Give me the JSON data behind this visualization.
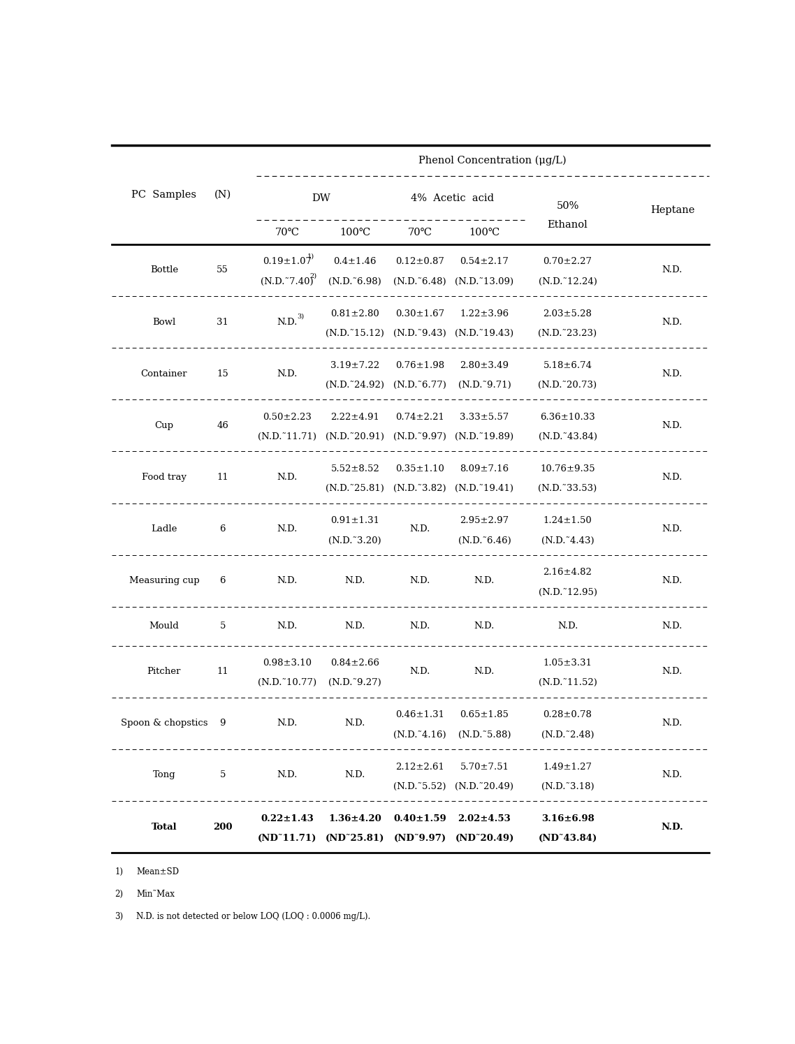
{
  "title": "Phenol Concentration (μg/L)",
  "rows": [
    {
      "sample": "Bottle",
      "n": "55",
      "dw_70": "0.19±1.07",
      "dw_70_sup": "1)",
      "dw_70b": "(N.D.˜7.40)",
      "dw_70b_sup": "2)",
      "dw_100": "0.4±1.46",
      "dw_100b": "(N.D.˜6.98)",
      "aa_70": "0.12±0.87",
      "aa_70b": "(N.D.˜6.48)",
      "aa_100": "0.54±2.17",
      "aa_100b": "(N.D.˜13.09)",
      "eth": "0.70±2.27",
      "ethb": "(N.D.˜12.24)",
      "heptane": "N.D."
    },
    {
      "sample": "Bowl",
      "n": "31",
      "dw_70": "N.D.",
      "dw_70_sup": "3)",
      "dw_70b": "",
      "dw_70b_sup": "",
      "dw_100": "0.81±2.80",
      "dw_100b": "(N.D.˜15.12)",
      "aa_70": "0.30±1.67",
      "aa_70b": "(N.D.˜9.43)",
      "aa_100": "1.22±3.96",
      "aa_100b": "(N.D.˜19.43)",
      "eth": "2.03±5.28",
      "ethb": "(N.D.˜23.23)",
      "heptane": "N.D."
    },
    {
      "sample": "Container",
      "n": "15",
      "dw_70": "N.D.",
      "dw_70_sup": "",
      "dw_70b": "",
      "dw_70b_sup": "",
      "dw_100": "3.19±7.22",
      "dw_100b": "(N.D.˜24.92)",
      "aa_70": "0.76±1.98",
      "aa_70b": "(N.D.˜6.77)",
      "aa_100": "2.80±3.49",
      "aa_100b": "(N.D.˜9.71)",
      "eth": "5.18±6.74",
      "ethb": "(N.D.˜20.73)",
      "heptane": "N.D."
    },
    {
      "sample": "Cup",
      "n": "46",
      "dw_70": "0.50±2.23",
      "dw_70_sup": "",
      "dw_70b": "(N.D.˜11.71)",
      "dw_70b_sup": "",
      "dw_100": "2.22±4.91",
      "dw_100b": "(N.D.˜20.91)",
      "aa_70": "0.74±2.21",
      "aa_70b": "(N.D.˜9.97)",
      "aa_100": "3.33±5.57",
      "aa_100b": "(N.D.˜19.89)",
      "eth": "6.36±10.33",
      "ethb": "(N.D.˜43.84)",
      "heptane": "N.D."
    },
    {
      "sample": "Food tray",
      "n": "11",
      "dw_70": "N.D.",
      "dw_70_sup": "",
      "dw_70b": "",
      "dw_70b_sup": "",
      "dw_100": "5.52±8.52",
      "dw_100b": "(N.D.˜25.81)",
      "aa_70": "0.35±1.10",
      "aa_70b": "(N.D.˜3.82)",
      "aa_100": "8.09±7.16",
      "aa_100b": "(N.D.˜19.41)",
      "eth": "10.76±9.35",
      "ethb": "(N.D.˜33.53)",
      "heptane": "N.D."
    },
    {
      "sample": "Ladle",
      "n": "6",
      "dw_70": "N.D.",
      "dw_70_sup": "",
      "dw_70b": "",
      "dw_70b_sup": "",
      "dw_100": "0.91±1.31",
      "dw_100b": "(N.D.˜3.20)",
      "aa_70": "N.D.",
      "aa_70b": "",
      "aa_100": "2.95±2.97",
      "aa_100b": "(N.D.˜6.46)",
      "eth": "1.24±1.50",
      "ethb": "(N.D.˜4.43)",
      "heptane": "N.D."
    },
    {
      "sample": "Measuring cup",
      "n": "6",
      "dw_70": "N.D.",
      "dw_70_sup": "",
      "dw_70b": "",
      "dw_70b_sup": "",
      "dw_100": "N.D.",
      "dw_100b": "",
      "aa_70": "N.D.",
      "aa_70b": "",
      "aa_100": "N.D.",
      "aa_100b": "",
      "eth": "2.16±4.82",
      "ethb": "(N.D.˜12.95)",
      "heptane": "N.D."
    },
    {
      "sample": "Mould",
      "n": "5",
      "dw_70": "N.D.",
      "dw_70_sup": "",
      "dw_70b": "",
      "dw_70b_sup": "",
      "dw_100": "N.D.",
      "dw_100b": "",
      "aa_70": "N.D.",
      "aa_70b": "",
      "aa_100": "N.D.",
      "aa_100b": "",
      "eth": "N.D.",
      "ethb": "",
      "heptane": "N.D."
    },
    {
      "sample": "Pitcher",
      "n": "11",
      "dw_70": "0.98±3.10",
      "dw_70_sup": "",
      "dw_70b": "(N.D.˜10.77)",
      "dw_70b_sup": "",
      "dw_100": "0.84±2.66",
      "dw_100b": "(N.D.˜9.27)",
      "aa_70": "N.D.",
      "aa_70b": "",
      "aa_100": "N.D.",
      "aa_100b": "",
      "eth": "1.05±3.31",
      "ethb": "(N.D.˜11.52)",
      "heptane": "N.D."
    },
    {
      "sample": "Spoon & chopstics",
      "n": "9",
      "dw_70": "N.D.",
      "dw_70_sup": "",
      "dw_70b": "",
      "dw_70b_sup": "",
      "dw_100": "N.D.",
      "dw_100b": "",
      "aa_70": "0.46±1.31",
      "aa_70b": "(N.D.˜4.16)",
      "aa_100": "0.65±1.85",
      "aa_100b": "(N.D.˜5.88)",
      "eth": "0.28±0.78",
      "ethb": "(N.D.˜2.48)",
      "heptane": "N.D."
    },
    {
      "sample": "Tong",
      "n": "5",
      "dw_70": "N.D.",
      "dw_70_sup": "",
      "dw_70b": "",
      "dw_70b_sup": "",
      "dw_100": "N.D.",
      "dw_100b": "",
      "aa_70": "2.12±2.61",
      "aa_70b": "(N.D.˜5.52)",
      "aa_100": "5.70±7.51",
      "aa_100b": "(N.D.˜20.49)",
      "eth": "1.49±1.27",
      "ethb": "(N.D.˜3.18)",
      "heptane": "N.D."
    },
    {
      "sample": "Total",
      "n": "200",
      "dw_70": "0.22±1.43",
      "dw_70_sup": "",
      "dw_70b": "(ND˜11.71)",
      "dw_70b_sup": "",
      "dw_100": "1.36±4.20",
      "dw_100b": "(ND˜25.81)",
      "aa_70": "0.40±1.59",
      "aa_70b": "(ND˜9.97)",
      "aa_100": "2.02±4.53",
      "aa_100b": "(ND˜20.49)",
      "eth": "3.16±6.98",
      "ethb": "(ND˜43.84)",
      "heptane": "N.D."
    }
  ],
  "footnotes": [
    [
      "1)",
      "Mean±SD"
    ],
    [
      "2)",
      "Min˜Max"
    ],
    [
      "3)",
      "N.D. is not detected or below LOQ (LOQ : 0.0006 mg/L)."
    ]
  ]
}
